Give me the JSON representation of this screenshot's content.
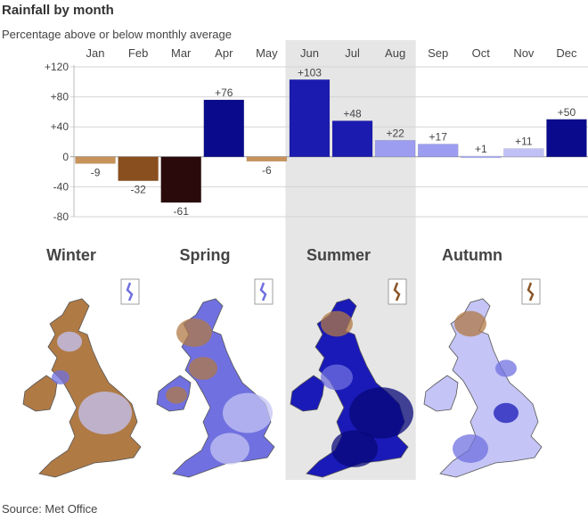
{
  "chart_data": {
    "type": "bar",
    "title": "Rainfall by month",
    "subtitle": "Percentage above or below monthly average",
    "categories": [
      "Jan",
      "Feb",
      "Mar",
      "Apr",
      "May",
      "Jun",
      "Jul",
      "Aug",
      "Sep",
      "Oct",
      "Nov",
      "Dec"
    ],
    "values": [
      -9,
      -32,
      -61,
      76,
      -6,
      103,
      48,
      22,
      17,
      1,
      11,
      50
    ],
    "value_labels": [
      "-9",
      "-32",
      "-61",
      "+76",
      "-6",
      "+103",
      "+48",
      "+22",
      "+17",
      "+1",
      "+11",
      "+50"
    ],
    "colors": [
      "#c8935a",
      "#8a4f1e",
      "#2a0a0a",
      "#0a0a8c",
      "#c8935a",
      "#1b1bb0",
      "#1b1bb0",
      "#9c9cf0",
      "#9c9cf0",
      "#b0b0f2",
      "#c0c0f4",
      "#0a0a8c"
    ],
    "ylim": [
      -80,
      120
    ],
    "yticks": [
      -80,
      -40,
      0,
      40,
      80,
      120
    ],
    "ytick_labels": [
      "-80",
      "-40",
      "0",
      "+40",
      "+80",
      "+120"
    ],
    "highlight_range": [
      "Jun",
      "Aug"
    ],
    "grid": true
  },
  "seasons": [
    {
      "label": "Winter",
      "tone": "dry"
    },
    {
      "label": "Spring",
      "tone": "mixed"
    },
    {
      "label": "Summer",
      "tone": "wet"
    },
    {
      "label": "Autumn",
      "tone": "moderate"
    }
  ],
  "palette": {
    "dry": "#b07a45",
    "dry_dark": "#8a5527",
    "wet_light": "#c4c4f6",
    "wet_mid": "#7070e0",
    "wet_dark": "#1a1ab8",
    "wet_deep": "#08087a",
    "highlight": "#e6e6e6"
  },
  "source": "Source: Met Office"
}
